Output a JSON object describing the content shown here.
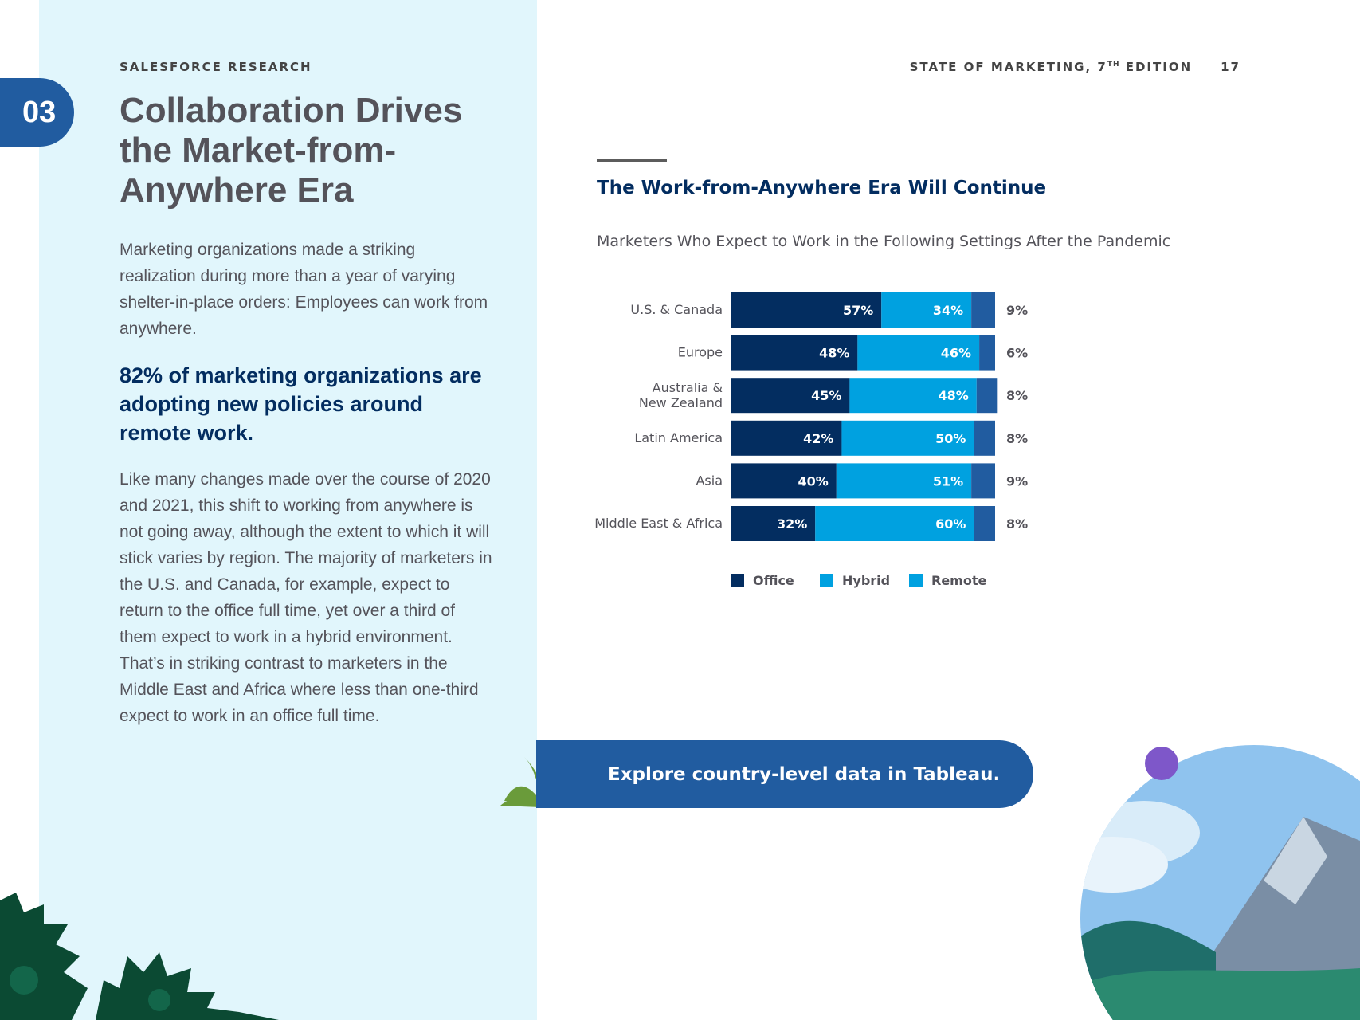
{
  "header": {
    "eyebrow": "SALESFORCE RESEARCH",
    "report_title": "STATE OF MARKETING, 7",
    "report_title_sup": "TH",
    "report_title_tail": " EDITION",
    "page_number": "17"
  },
  "section": {
    "number": "03",
    "title": "Collaboration Drives the Market-from-Anywhere Era",
    "intro": "Marketing organizations made a striking realization during more than a year of varying shelter-in-place orders: Employees can work from anywhere.",
    "callout": "82% of marketing organizations are adopting new policies around remote work.",
    "body": "Like many changes made over the course of 2020 and 2021, this shift to working from anywhere is not going away, although the extent to which it will stick varies by region. The majority of marketers in the U.S. and Canada, for example, expect to return to the office full time, yet over a third of them expect to work in a hybrid environment. That’s in striking contrast to marketers in the Middle East and Africa where less than one-third expect to work in an office full time."
  },
  "cta": {
    "label": "Explore country-level data in Tableau."
  },
  "colors": {
    "office": "#032d60",
    "hybrid": "#00a1e0",
    "remote": "#215ca0",
    "panel": "#e1f6fc"
  },
  "chart_data": {
    "type": "bar",
    "orientation": "horizontal-stacked-100",
    "title": "The Work-from-Anywhere Era Will Continue",
    "subtitle": "Marketers Who Expect to Work in the Following Settings After the Pandemic",
    "categories": [
      [
        "U.S. & Canada"
      ],
      [
        "Europe"
      ],
      [
        "Australia &",
        "New Zealand"
      ],
      [
        "Latin America"
      ],
      [
        "Asia"
      ],
      [
        "Middle East & Africa"
      ]
    ],
    "series": [
      {
        "name": "Office",
        "values": [
          57,
          48,
          45,
          42,
          40,
          32
        ]
      },
      {
        "name": "Hybrid",
        "values": [
          34,
          46,
          48,
          50,
          51,
          60
        ]
      },
      {
        "name": "Remote",
        "values": [
          9,
          6,
          8,
          8,
          9,
          8
        ]
      }
    ],
    "unit": "%",
    "legend_position": "bottom",
    "xlim": [
      0,
      100
    ]
  }
}
